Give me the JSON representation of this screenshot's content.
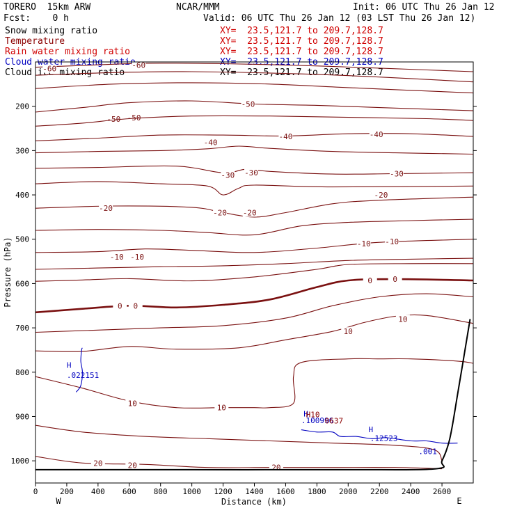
{
  "header": {
    "model": "TORERO  15km ARW",
    "center": "NCAR/MMM",
    "init": "Init: 06 UTC Thu 26 Jan 12",
    "fcst": "Fcst:    0 h",
    "valid": "Valid: 06 UTC Thu 26 Jan 12 (03 LST Thu 26 Jan 12)"
  },
  "legend": [
    {
      "label": "Snow mixing ratio",
      "xy": "XY=  23.5,121.7 to 209.7,128.7",
      "color": "#000000"
    },
    {
      "label": "Temperature",
      "xy": "XY=  23.5,121.7 to 209.7,128.7",
      "color": "#8b0000"
    },
    {
      "label": "Rain water mixing ratio",
      "xy": "XY=  23.5,121.7 to 209.7,128.7",
      "color": "#d00000"
    },
    {
      "label": "Cloud water mixing ratio",
      "xy": "XY=  23.5,121.7 to 209.7,128.7",
      "color": "#0000c0"
    },
    {
      "label": "Cloud ice mixing ratio",
      "xy": "XY=  23.5,121.7 to 209.7,128.7",
      "color": "#000000"
    }
  ],
  "chart_data": {
    "type": "contour",
    "xlabel": "Distance (km)",
    "ylabel": "Pressure (hPa)",
    "xlim": [
      0,
      2800
    ],
    "ylim": [
      1050,
      100
    ],
    "x_ticks": [
      0,
      200,
      400,
      600,
      800,
      1000,
      1200,
      1400,
      1600,
      1800,
      2000,
      2200,
      2400,
      2600
    ],
    "y_ticks": [
      200,
      300,
      400,
      500,
      600,
      700,
      800,
      900,
      1000
    ],
    "x_end_labels": {
      "left": "W",
      "right": "E"
    },
    "temperature_isotherms": [
      {
        "level": -60,
        "points": [
          [
            0,
            112
          ],
          [
            300,
            108
          ],
          [
            700,
            103
          ],
          [
            1200,
            104
          ],
          [
            1700,
            108
          ],
          [
            2200,
            114
          ],
          [
            2800,
            122
          ]
        ],
        "labels": [
          {
            "text": "-60",
            "x": 90,
            "y": 115
          },
          {
            "text": "-60",
            "x": 660,
            "y": 107
          }
        ]
      },
      {
        "level": -60,
        "points": [
          [
            0,
            130
          ],
          [
            500,
            124
          ],
          [
            1000,
            122
          ],
          [
            1600,
            126
          ],
          [
            2200,
            134
          ],
          [
            2800,
            145
          ]
        ],
        "labels": []
      },
      {
        "level": -50,
        "points": [
          [
            0,
            160
          ],
          [
            500,
            150
          ],
          [
            1000,
            147
          ],
          [
            1500,
            150
          ],
          [
            2000,
            158
          ],
          [
            2800,
            170
          ]
        ],
        "labels": []
      },
      {
        "level": -50,
        "points": [
          [
            0,
            213
          ],
          [
            300,
            203
          ],
          [
            600,
            192
          ],
          [
            1000,
            188
          ],
          [
            1400,
            195
          ],
          [
            1800,
            198
          ],
          [
            2200,
            203
          ],
          [
            2800,
            210
          ]
        ],
        "labels": [
          {
            "text": "-50",
            "x": 1360,
            "y": 195
          },
          {
            "text": "-50",
            "x": 500,
            "y": 229
          },
          {
            "text": "-50",
            "x": 630,
            "y": 226
          }
        ]
      },
      {
        "level": -40,
        "points": [
          [
            0,
            245
          ],
          [
            300,
            238
          ],
          [
            600,
            228
          ],
          [
            1000,
            222
          ],
          [
            1500,
            222
          ],
          [
            2000,
            225
          ],
          [
            2500,
            228
          ],
          [
            2800,
            232
          ]
        ],
        "labels": []
      },
      {
        "level": -40,
        "points": [
          [
            0,
            278
          ],
          [
            400,
            272
          ],
          [
            800,
            265
          ],
          [
            1200,
            265
          ],
          [
            1600,
            267
          ],
          [
            2000,
            262
          ],
          [
            2400,
            262
          ],
          [
            2800,
            268
          ]
        ],
        "labels": [
          {
            "text": "-40",
            "x": 1120,
            "y": 281
          },
          {
            "text": "-40",
            "x": 1600,
            "y": 268
          },
          {
            "text": "-40",
            "x": 2180,
            "y": 263
          }
        ]
      },
      {
        "level": -30,
        "points": [
          [
            0,
            305
          ],
          [
            400,
            302
          ],
          [
            800,
            300
          ],
          [
            1100,
            296
          ],
          [
            1300,
            290
          ],
          [
            1500,
            295
          ],
          [
            1900,
            302
          ],
          [
            2300,
            305
          ],
          [
            2800,
            308
          ]
        ],
        "labels": []
      },
      {
        "level": -30,
        "points": [
          [
            0,
            340
          ],
          [
            400,
            338
          ],
          [
            900,
            335
          ],
          [
            1200,
            350
          ],
          [
            1350,
            342
          ],
          [
            1500,
            347
          ],
          [
            1900,
            353
          ],
          [
            2300,
            352
          ],
          [
            2800,
            350
          ]
        ],
        "labels": [
          {
            "text": "-30",
            "x": 1230,
            "y": 355
          },
          {
            "text": "-30",
            "x": 1380,
            "y": 350
          },
          {
            "text": "-30",
            "x": 2310,
            "y": 352
          }
        ]
      },
      {
        "level": -20,
        "points": [
          [
            0,
            375
          ],
          [
            400,
            370
          ],
          [
            800,
            375
          ],
          [
            1100,
            380
          ],
          [
            1200,
            400
          ],
          [
            1300,
            385
          ],
          [
            1400,
            378
          ],
          [
            1900,
            382
          ],
          [
            2800,
            380
          ]
        ],
        "labels": [
          {
            "text": "-20",
            "x": 2210,
            "y": 400
          }
        ]
      },
      {
        "level": -20,
        "points": [
          [
            0,
            430
          ],
          [
            500,
            425
          ],
          [
            1000,
            428
          ],
          [
            1200,
            440
          ],
          [
            1400,
            450
          ],
          [
            1600,
            440
          ],
          [
            1900,
            420
          ],
          [
            2200,
            412
          ],
          [
            2800,
            405
          ]
        ],
        "labels": [
          {
            "text": "-20",
            "x": 450,
            "y": 430
          },
          {
            "text": "-20",
            "x": 1180,
            "y": 440
          },
          {
            "text": "-20",
            "x": 1370,
            "y": 440
          }
        ]
      },
      {
        "level": -10,
        "points": [
          [
            0,
            480
          ],
          [
            400,
            478
          ],
          [
            800,
            480
          ],
          [
            1100,
            485
          ],
          [
            1400,
            490
          ],
          [
            1700,
            470
          ],
          [
            2000,
            462
          ],
          [
            2400,
            458
          ],
          [
            2800,
            455
          ]
        ],
        "labels": []
      },
      {
        "level": -10,
        "points": [
          [
            0,
            530
          ],
          [
            400,
            528
          ],
          [
            700,
            522
          ],
          [
            1000,
            525
          ],
          [
            1400,
            530
          ],
          [
            1800,
            520
          ],
          [
            2200,
            507
          ],
          [
            2800,
            500
          ]
        ],
        "labels": [
          {
            "text": "-10",
            "x": 2100,
            "y": 510
          },
          {
            "text": "-10",
            "x": 2280,
            "y": 505
          },
          {
            "text": "-10",
            "x": 520,
            "y": 540
          },
          {
            "text": "-10",
            "x": 650,
            "y": 540
          }
        ]
      },
      {
        "level": -10,
        "points": [
          [
            0,
            568
          ],
          [
            400,
            565
          ],
          [
            800,
            562
          ],
          [
            1200,
            560
          ],
          [
            1600,
            555
          ],
          [
            2000,
            548
          ],
          [
            2400,
            545
          ],
          [
            2800,
            543
          ]
        ],
        "labels": []
      },
      {
        "level": 0,
        "points": [
          [
            0,
            595
          ],
          [
            300,
            592
          ],
          [
            600,
            589
          ],
          [
            1000,
            594
          ],
          [
            1400,
            585
          ],
          [
            1800,
            568
          ],
          [
            2000,
            557
          ],
          [
            2400,
            555
          ],
          [
            2800,
            555
          ]
        ],
        "labels": []
      },
      {
        "level": 0,
        "points": [
          [
            0,
            665
          ],
          [
            300,
            657
          ],
          [
            600,
            650
          ],
          [
            900,
            654
          ],
          [
            1200,
            648
          ],
          [
            1500,
            636
          ],
          [
            1800,
            608
          ],
          [
            2000,
            593
          ],
          [
            2300,
            590
          ],
          [
            2800,
            593
          ]
        ],
        "labels": [
          {
            "text": "0",
            "x": 2140,
            "y": 593
          },
          {
            "text": "0",
            "x": 2300,
            "y": 590
          },
          {
            "text": "0",
            "x": 540,
            "y": 650
          },
          {
            "text": "0",
            "x": 640,
            "y": 650
          }
        ]
      },
      {
        "level": 10,
        "points": [
          [
            0,
            710
          ],
          [
            400,
            705
          ],
          [
            800,
            700
          ],
          [
            1200,
            695
          ],
          [
            1600,
            678
          ],
          [
            1900,
            650
          ],
          [
            2200,
            630
          ],
          [
            2500,
            623
          ],
          [
            2800,
            630
          ]
        ],
        "labels": []
      },
      {
        "level": 10,
        "points": [
          [
            0,
            752
          ],
          [
            300,
            753
          ],
          [
            600,
            742
          ],
          [
            900,
            748
          ],
          [
            1300,
            745
          ],
          [
            1600,
            727
          ],
          [
            1900,
            708
          ],
          [
            2100,
            688
          ],
          [
            2300,
            674
          ],
          [
            2500,
            672
          ],
          [
            2800,
            690
          ]
        ],
        "labels": [
          {
            "text": "10",
            "x": 2000,
            "y": 708
          },
          {
            "text": "10",
            "x": 2350,
            "y": 680
          }
        ]
      },
      {
        "level": 10,
        "points": [
          [
            0,
            810
          ],
          [
            300,
            836
          ],
          [
            600,
            865
          ],
          [
            900,
            880
          ],
          [
            1200,
            880
          ],
          [
            1400,
            880
          ],
          [
            1500,
            880
          ],
          [
            1650,
            870
          ],
          [
            1650,
            810
          ],
          [
            1700,
            778
          ],
          [
            2000,
            770
          ],
          [
            2200,
            770
          ],
          [
            2400,
            770
          ],
          [
            2700,
            775
          ],
          [
            2800,
            780
          ]
        ],
        "labels": [
          {
            "text": "10",
            "x": 620,
            "y": 870
          },
          {
            "text": "10",
            "x": 1190,
            "y": 880
          }
        ]
      },
      {
        "level": 20,
        "points": [
          [
            0,
            920
          ],
          [
            300,
            935
          ],
          [
            700,
            945
          ],
          [
            1100,
            950
          ],
          [
            1500,
            955
          ],
          [
            1900,
            960
          ],
          [
            2300,
            965
          ],
          [
            2550,
            975
          ],
          [
            2600,
            1000
          ]
        ],
        "labels": []
      },
      {
        "level": 20,
        "points": [
          [
            0,
            990
          ],
          [
            300,
            1005
          ],
          [
            700,
            1008
          ],
          [
            1100,
            1015
          ],
          [
            1500,
            1015
          ],
          [
            1900,
            1015
          ],
          [
            2300,
            1015
          ],
          [
            2600,
            1018
          ]
        ],
        "labels": [
          {
            "text": "20",
            "x": 400,
            "y": 1005
          },
          {
            "text": "20",
            "x": 620,
            "y": 1010
          },
          {
            "text": "20",
            "x": 1540,
            "y": 1015
          }
        ]
      }
    ],
    "cloud_water_contours": [
      {
        "points": [
          [
            260,
            845
          ],
          [
            290,
            830
          ],
          [
            300,
            800
          ],
          [
            290,
            775
          ],
          [
            295,
            750
          ],
          [
            300,
            745
          ]
        ],
        "labels": []
      },
      {
        "points": [
          [
            1700,
            930
          ],
          [
            1800,
            935
          ],
          [
            1900,
            935
          ],
          [
            1950,
            945
          ],
          [
            2050,
            945
          ],
          [
            2150,
            950
          ],
          [
            2250,
            948
          ],
          [
            2400,
            955
          ],
          [
            2500,
            955
          ],
          [
            2600,
            960
          ],
          [
            2700,
            960
          ]
        ],
        "labels": []
      }
    ],
    "annotations": [
      {
        "text": "H",
        "x": 200,
        "y": 790,
        "color": "#0000c0"
      },
      {
        "text": ".022151",
        "x": 200,
        "y": 813,
        "color": "#0000c0"
      },
      {
        "text": "H",
        "x": 1715,
        "y": 900,
        "color": "#0000c0"
      },
      {
        "text": "H10",
        "x": 1730,
        "y": 902,
        "color": "#8b0000"
      },
      {
        "text": ".100996",
        "x": 1700,
        "y": 915,
        "color": "#0000c0"
      },
      {
        "text": "0637",
        "x": 1850,
        "y": 916,
        "color": "#8b0000"
      },
      {
        "text": "H",
        "x": 2130,
        "y": 935,
        "color": "#0000c0"
      },
      {
        "text": ".12523",
        "x": 2140,
        "y": 955,
        "color": "#0000c0"
      },
      {
        "text": ".001",
        "x": 2450,
        "y": 985,
        "color": "#0000c0"
      }
    ],
    "terrain": {
      "points": [
        [
          0,
          1020
        ],
        [
          1000,
          1020
        ],
        [
          2000,
          1020
        ],
        [
          2560,
          1018
        ],
        [
          2600,
          1000
        ],
        [
          2650,
          950
        ],
        [
          2700,
          850
        ],
        [
          2780,
          680
        ]
      ]
    }
  }
}
